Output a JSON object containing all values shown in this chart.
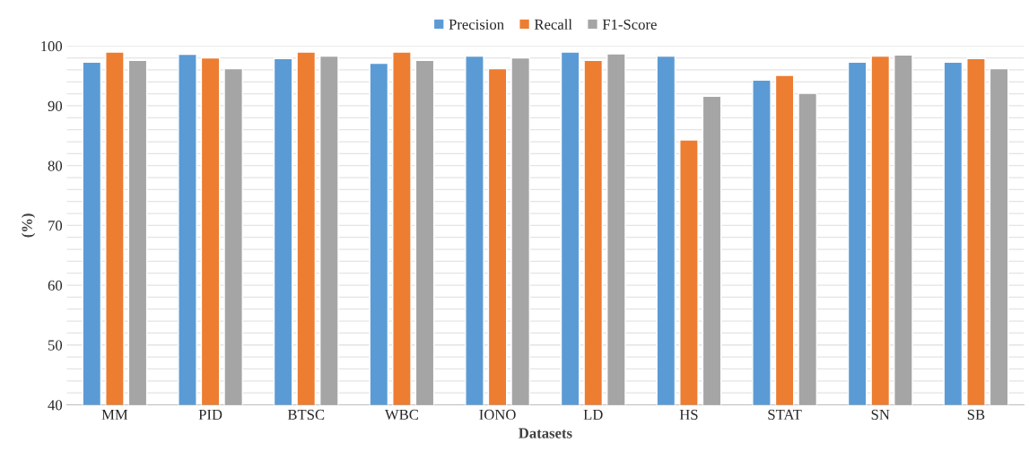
{
  "chart_data": {
    "type": "bar",
    "xlabel": "Datasets",
    "ylabel": "(%)",
    "categories": [
      "MM",
      "PID",
      "BTSC",
      "WBC",
      "IONO",
      "LD",
      "HS",
      "STAT",
      "SN",
      "SB"
    ],
    "series": [
      {
        "name": "Precision",
        "color": "#5b9bd5",
        "values": [
          97.3,
          98.6,
          97.9,
          97.1,
          98.3,
          99.0,
          98.3,
          94.3,
          97.3,
          97.3
        ]
      },
      {
        "name": "Recall",
        "color": "#ed7d31",
        "values": [
          99.0,
          98.0,
          99.0,
          99.0,
          96.2,
          97.6,
          84.3,
          95.1,
          98.3,
          97.9
        ]
      },
      {
        "name": "F1-Score",
        "color": "#a5a5a5",
        "values": [
          97.6,
          96.2,
          98.3,
          97.6,
          98.0,
          98.7,
          91.6,
          92.1,
          98.5,
          96.2
        ]
      }
    ],
    "ylim": [
      40,
      100
    ],
    "yticks": [
      40,
      {
        "value": 42,
        "label": null
      },
      {
        "value": 44,
        "label": null
      },
      {
        "value": 46,
        "label": null
      },
      {
        "value": 48,
        "label": null
      },
      50,
      {
        "value": 52,
        "label": null
      },
      {
        "value": 54,
        "label": null
      },
      {
        "value": 56,
        "label": null
      },
      {
        "value": 58,
        "label": null
      },
      60,
      {
        "value": 62,
        "label": null
      },
      {
        "value": 64,
        "label": null
      },
      {
        "value": 66,
        "label": null
      },
      {
        "value": 68,
        "label": null
      },
      70,
      {
        "value": 72,
        "label": null
      },
      {
        "value": 74,
        "label": null
      },
      {
        "value": 76,
        "label": null
      },
      {
        "value": 78,
        "label": null
      },
      80,
      {
        "value": 82,
        "label": null
      },
      {
        "value": 84,
        "label": null
      },
      {
        "value": 86,
        "label": null
      },
      {
        "value": 88,
        "label": null
      },
      90,
      {
        "value": 92,
        "label": null
      },
      {
        "value": 94,
        "label": null
      },
      {
        "value": 96,
        "label": null
      },
      {
        "value": 98,
        "label": null
      },
      100
    ],
    "grid": "y",
    "legend": "top"
  }
}
